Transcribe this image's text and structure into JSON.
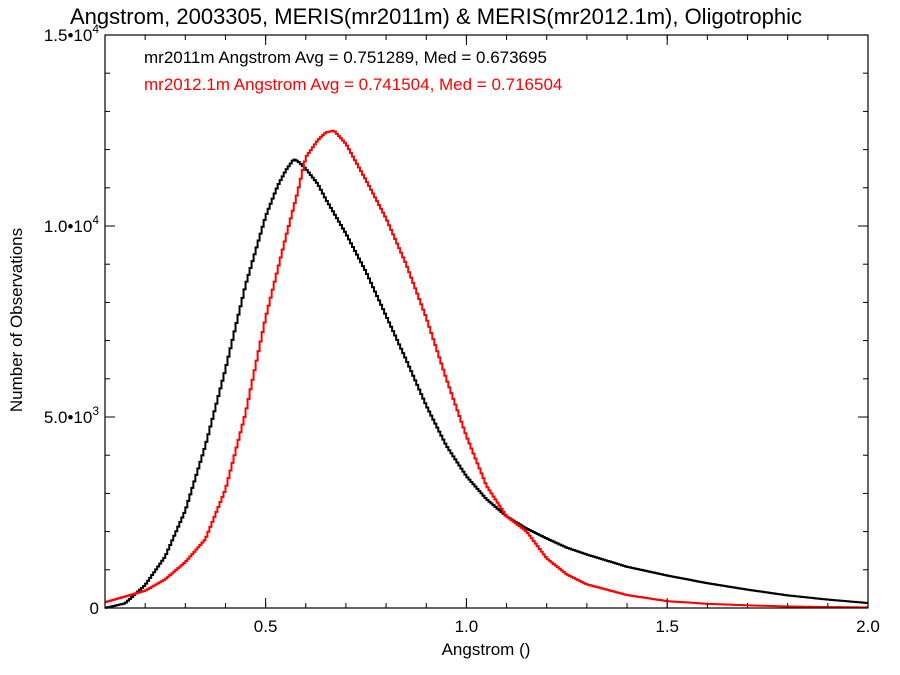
{
  "chart_data": {
    "type": "line",
    "title": "Angstrom, 2003305, MERIS(mr2011m) & MERIS(mr2012.1m), Oligotrophic",
    "xlabel": "Angstrom ()",
    "ylabel": "Number of Observations",
    "xlim": [
      0.1,
      2.0
    ],
    "ylim": [
      0,
      15000
    ],
    "x_ticks": [
      {
        "value": 0.5,
        "label": "0.5"
      },
      {
        "value": 1.0,
        "label": "1.0"
      },
      {
        "value": 1.5,
        "label": "1.5"
      },
      {
        "value": 2.0,
        "label": "2.0"
      }
    ],
    "y_ticks": [
      {
        "value": 0,
        "mantissa": "0",
        "exponent": ""
      },
      {
        "value": 5000,
        "mantissa": "5.0•10",
        "exponent": "3"
      },
      {
        "value": 10000,
        "mantissa": "1.0•10",
        "exponent": "4"
      },
      {
        "value": 15000,
        "mantissa": "1.5•10",
        "exponent": "4"
      }
    ],
    "annotations": [
      {
        "text": "mr2011m Angstrom Avg = 0.751289, Med = 0.673695",
        "color": "#000000"
      },
      {
        "text": "mr2012.1m Angstrom Avg = 0.741504, Med = 0.716504",
        "color": "#ff0000"
      }
    ],
    "series": [
      {
        "color": "#000000",
        "x": [
          0.1,
          0.15,
          0.2,
          0.25,
          0.3,
          0.35,
          0.4,
          0.45,
          0.5,
          0.53,
          0.55,
          0.57,
          0.58,
          0.6,
          0.63,
          0.65,
          0.7,
          0.75,
          0.8,
          0.85,
          0.9,
          0.95,
          1.0,
          1.05,
          1.1,
          1.15,
          1.2,
          1.25,
          1.3,
          1.4,
          1.5,
          1.6,
          1.7,
          1.8,
          1.9,
          2.0
        ],
        "y": [
          0,
          120,
          600,
          1350,
          2550,
          4250,
          6250,
          8450,
          10250,
          11050,
          11450,
          11750,
          11700,
          11500,
          11100,
          10700,
          9800,
          8800,
          7650,
          6500,
          5300,
          4250,
          3450,
          2850,
          2400,
          2080,
          1820,
          1580,
          1400,
          1080,
          850,
          650,
          480,
          330,
          220,
          130
        ]
      },
      {
        "color": "#ff0000",
        "x": [
          0.1,
          0.15,
          0.2,
          0.25,
          0.3,
          0.35,
          0.4,
          0.45,
          0.5,
          0.55,
          0.58,
          0.6,
          0.63,
          0.65,
          0.67,
          0.7,
          0.75,
          0.8,
          0.85,
          0.9,
          0.95,
          1.0,
          1.05,
          1.1,
          1.15,
          1.2,
          1.25,
          1.3,
          1.4,
          1.5,
          1.6,
          1.7,
          1.8,
          1.9,
          2.0
        ],
        "y": [
          150,
          300,
          450,
          750,
          1200,
          1800,
          3100,
          5100,
          7600,
          9700,
          10900,
          11800,
          12250,
          12450,
          12500,
          12150,
          11200,
          10200,
          9000,
          7600,
          6000,
          4500,
          3200,
          2400,
          2000,
          1300,
          880,
          620,
          340,
          180,
          110,
          70,
          40,
          25,
          15
        ]
      }
    ]
  }
}
